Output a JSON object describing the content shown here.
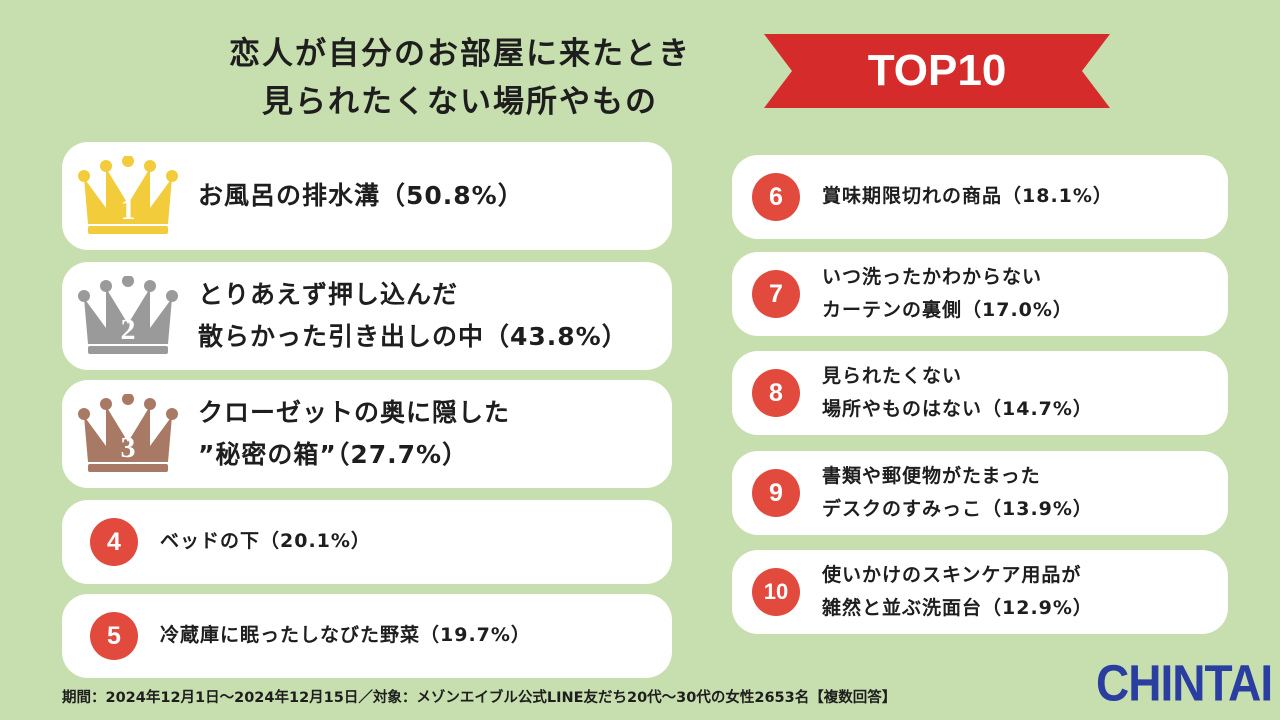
{
  "title": {
    "line1": "恋人が自分のお部屋に来たとき",
    "line2": "見られたくない場所やもの"
  },
  "banner": {
    "label": "TOP10",
    "color": "#d62b2b"
  },
  "crown_colors": [
    "#f2cc3a",
    "#9a9a9a",
    "#a87a66"
  ],
  "ranking": [
    {
      "rank": "1",
      "lines": [
        "お風呂の排水溝（50.8%）"
      ]
    },
    {
      "rank": "2",
      "lines": [
        "とりあえず押し込んだ",
        "散らかった引き出しの中（43.8%）"
      ]
    },
    {
      "rank": "3",
      "lines": [
        "クローゼットの奥に隠した",
        "”秘密の箱”（27.7%）"
      ]
    },
    {
      "rank": "4",
      "lines": [
        "ベッドの下（20.1%）"
      ]
    },
    {
      "rank": "5",
      "lines": [
        "冷蔵庫に眠ったしなびた野菜（19.7%）"
      ]
    },
    {
      "rank": "6",
      "lines": [
        "賞味期限切れの商品（18.1%）"
      ]
    },
    {
      "rank": "7",
      "lines": [
        "いつ洗ったかわからない",
        "カーテンの裏側（17.0%）"
      ]
    },
    {
      "rank": "8",
      "lines": [
        "見られたくない",
        "場所やものはない（14.7%）"
      ]
    },
    {
      "rank": "9",
      "lines": [
        "書類や郵便物がたまった",
        "デスクのすみっこ（13.9%）"
      ]
    },
    {
      "rank": "10",
      "lines": [
        "使いかけのスキンケア用品が",
        "雑然と並ぶ洗面台（12.9%）"
      ]
    }
  ],
  "footer": "期間：2024年12月1日～2024年12月15日／対象：メゾンエイブル公式LINE友だち20代～30代の女性2653名【複数回答】",
  "logo": "CHINTAI"
}
